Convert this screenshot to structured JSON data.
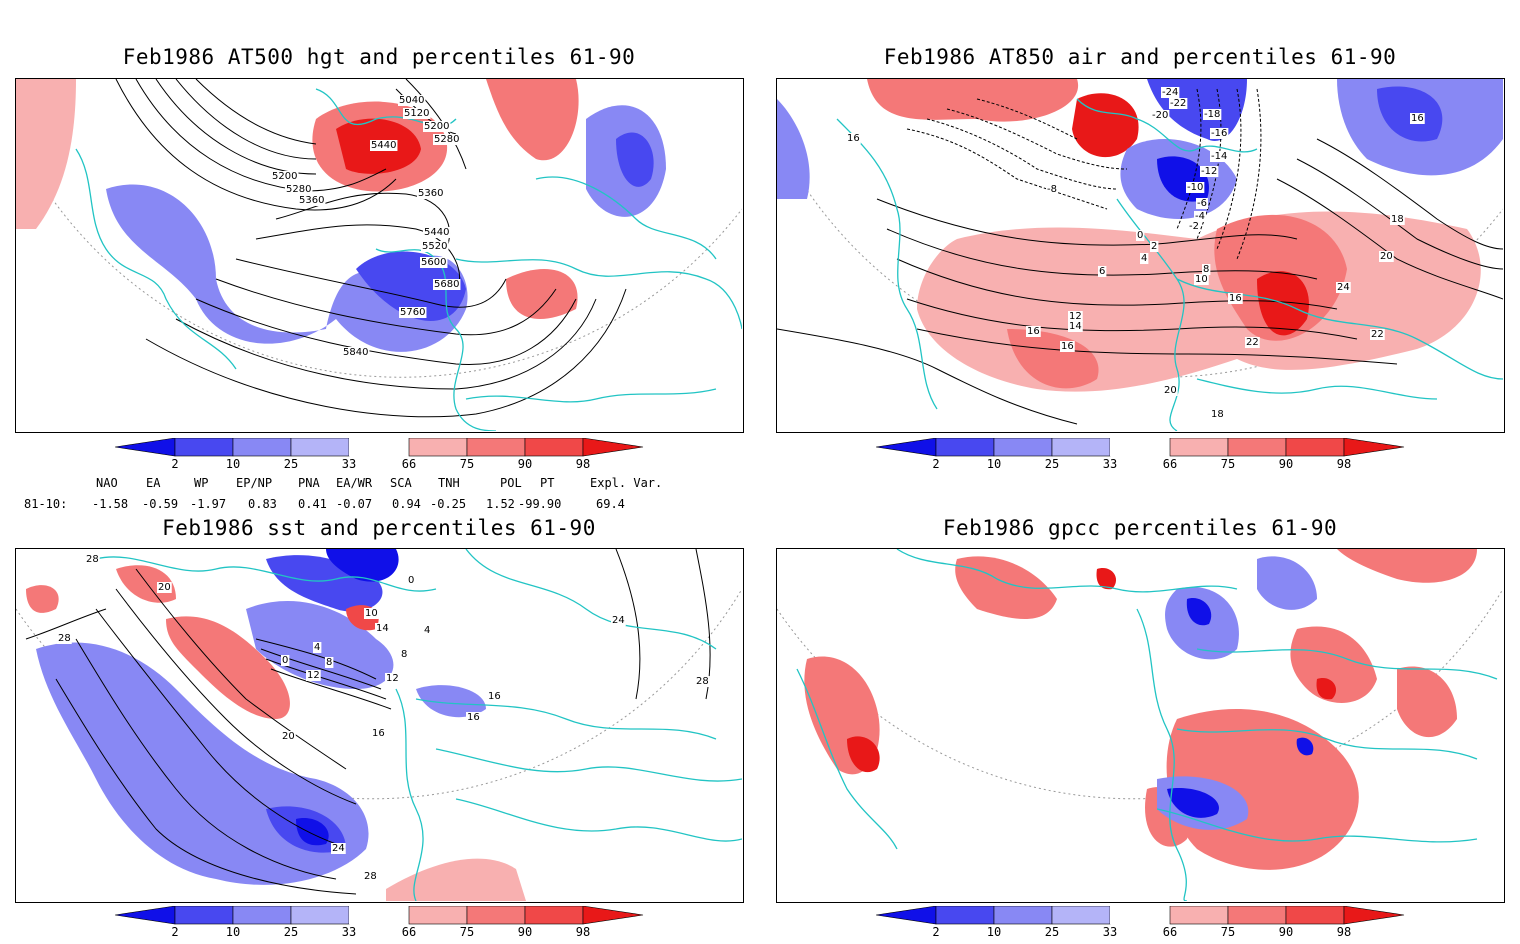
{
  "panels": [
    {
      "id": "p1",
      "title": "Feb1986 AT500 hgt and percentiles 61-90",
      "contour_labels": [
        "5040",
        "5120",
        "5200",
        "5280",
        "5440",
        "5200",
        "5280",
        "5360",
        "5360",
        "5440",
        "5520",
        "5600",
        "5680",
        "5760",
        "5840"
      ]
    },
    {
      "id": "p2",
      "title": "Feb1986 AT850 air and percentiles 61-90",
      "contour_labels": [
        "-24",
        "-22",
        "-20",
        "-18",
        "-16",
        "-14",
        "-12",
        "-10",
        "-8",
        "-6",
        "-4",
        "-2",
        "0",
        "2",
        "4",
        "6",
        "8",
        "10",
        "12",
        "14",
        "16",
        "16",
        "16",
        "18",
        "18",
        "20",
        "20",
        "22",
        "22",
        "24",
        "16",
        "16"
      ]
    },
    {
      "id": "p3",
      "title": "Feb1986 sst and percentiles 61-90",
      "contour_labels": [
        "28",
        "20",
        "28",
        "0",
        "4",
        "8",
        "12",
        "16",
        "20",
        "24",
        "28",
        "24",
        "16",
        "10",
        "14",
        "0",
        "4",
        "8",
        "12",
        "16",
        "28"
      ]
    },
    {
      "id": "p4",
      "title": "Feb1986 gpcc percentiles 61-90",
      "contour_labels": []
    }
  ],
  "colorbar": {
    "ticks": [
      "2",
      "10",
      "25",
      "33",
      "66",
      "75",
      "90",
      "98"
    ],
    "colors": {
      "blue_dark": "#1010e8",
      "blue_mid": "#4848f0",
      "blue_light": "#8888f4",
      "blue_pale": "#b4b4f8",
      "red_pale": "#f8b0b0",
      "red_light": "#f47878",
      "red_mid": "#f04848",
      "red_dark": "#e81818"
    }
  },
  "indices": {
    "header": [
      "NAO",
      "EA",
      "WP",
      "EP/NP",
      "PNA",
      "EA/WR",
      "SCA",
      "TNH",
      "POL",
      "PT",
      "Expl. Var."
    ],
    "row_label": "81-10:",
    "values": [
      "-1.58",
      "-0.59",
      "-1.97",
      "0.83",
      "0.41",
      "-0.07",
      "0.94",
      "-0.25",
      "1.52",
      "-99.90",
      "69.4"
    ]
  },
  "map_colors": {
    "coast": "#22c4c4",
    "grid": "#999999",
    "contour": "#000000"
  }
}
